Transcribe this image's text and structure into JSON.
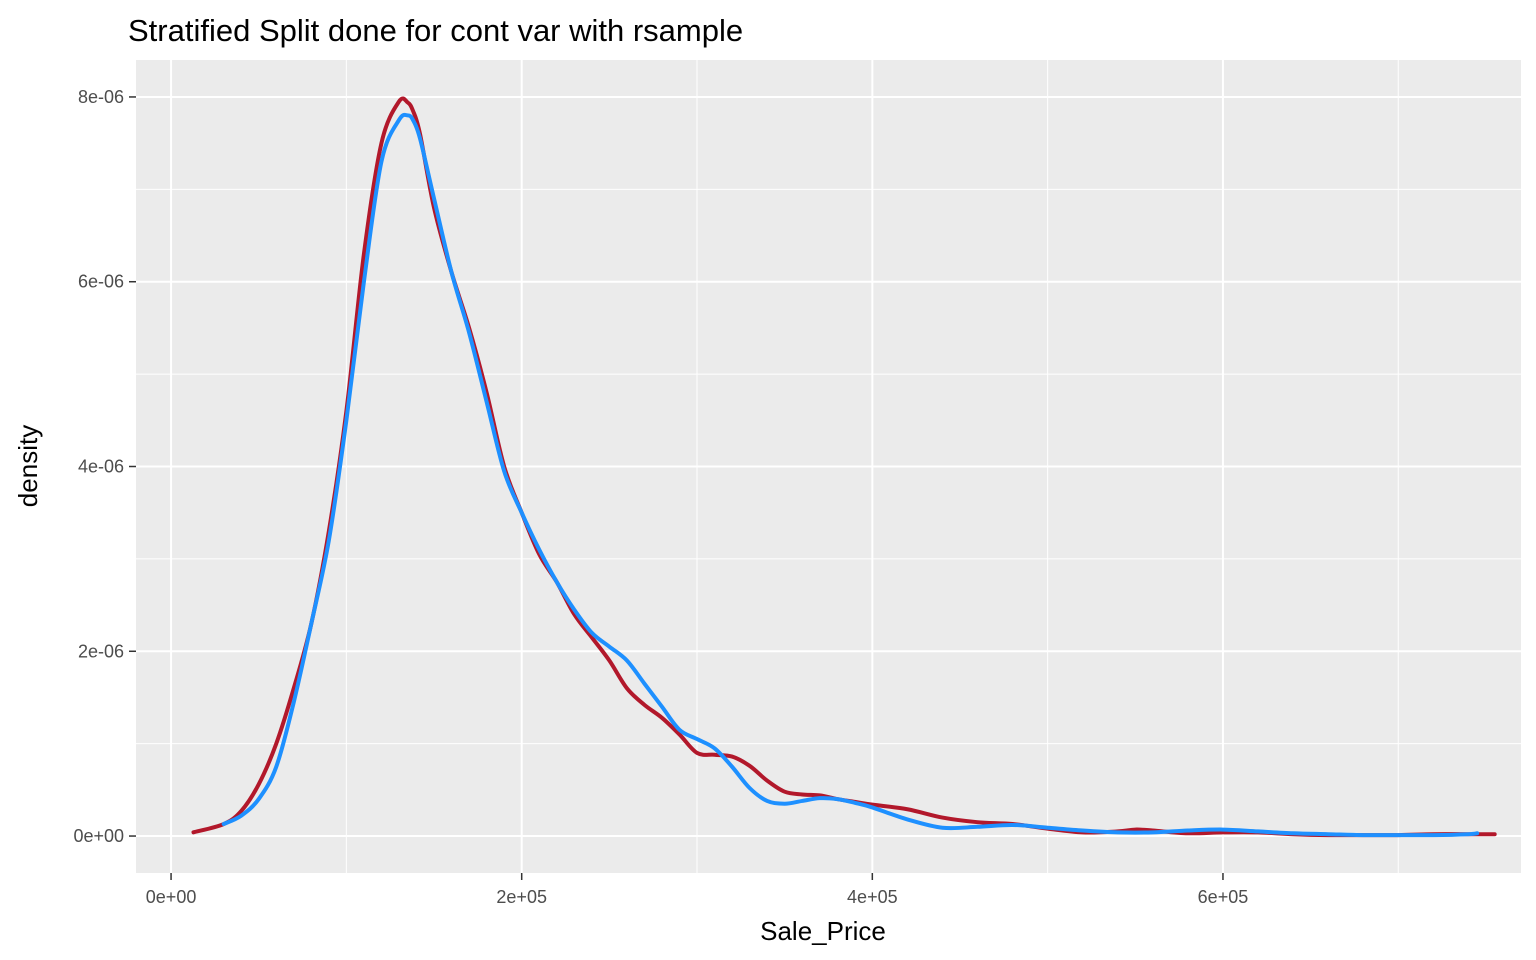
{
  "chart_data": {
    "type": "line",
    "chart_kind": "density",
    "title": "Stratified Split done for cont var with rsample",
    "xlabel": "Sale_Price",
    "ylabel": "density",
    "xlim": [
      -20000,
      770000
    ],
    "ylim": [
      -4e-07,
      8.4e-06
    ],
    "x_ticks": [
      {
        "value": 0,
        "label": "0e+00"
      },
      {
        "value": 200000,
        "label": "2e+05"
      },
      {
        "value": 400000,
        "label": "4e+05"
      },
      {
        "value": 600000,
        "label": "6e+05"
      }
    ],
    "y_ticks": [
      {
        "value": 0,
        "label": "0e+00"
      },
      {
        "value": 2e-06,
        "label": "2e-06"
      },
      {
        "value": 4e-06,
        "label": "4e-06"
      },
      {
        "value": 6e-06,
        "label": "6e-06"
      },
      {
        "value": 8e-06,
        "label": "8e-06"
      }
    ],
    "grid": true,
    "panel_background": "#EBEBEB",
    "gridline_color": "#FFFFFF",
    "legend": "none",
    "series": [
      {
        "color": "#B2182B",
        "x": [
          12800,
          30000,
          40000,
          50000,
          60000,
          70000,
          80000,
          90000,
          100000,
          110000,
          120000,
          130000,
          135000,
          138000,
          142000,
          150000,
          160000,
          170000,
          180000,
          190000,
          200000,
          210000,
          220000,
          230000,
          240000,
          250000,
          260000,
          270000,
          280000,
          290000,
          300000,
          310000,
          320000,
          330000,
          340000,
          350000,
          360000,
          370000,
          380000,
          390000,
          400000,
          420000,
          440000,
          460000,
          480000,
          500000,
          520000,
          540000,
          550000,
          560000,
          580000,
          600000,
          620000,
          640000,
          660000,
          680000,
          700000,
          720000,
          740000,
          755000
        ],
        "y": [
          4e-08,
          1.3e-07,
          2.7e-07,
          5.6e-07,
          1e-06,
          1.6e-06,
          2.3e-06,
          3.3e-06,
          4.6e-06,
          6.3e-06,
          7.5e-06,
          7.95e-06,
          7.94e-06,
          7.85e-06,
          7.6e-06,
          6.8e-06,
          6.1e-06,
          5.5e-06,
          4.8e-06,
          4e-06,
          3.5e-06,
          3.05e-06,
          2.75e-06,
          2.4e-06,
          2.15e-06,
          1.9e-06,
          1.6e-06,
          1.42e-06,
          1.28e-06,
          1.1e-06,
          9e-07,
          8.8e-07,
          8.6e-07,
          7.6e-07,
          6e-07,
          4.8e-07,
          4.5e-07,
          4.4e-07,
          4e-07,
          3.7e-07,
          3.4e-07,
          2.9e-07,
          2e-07,
          1.5e-07,
          1.3e-07,
          8e-08,
          4e-08,
          5e-08,
          7e-08,
          6e-08,
          3e-08,
          4e-08,
          4e-08,
          2e-08,
          1e-08,
          1e-08,
          1e-08,
          2e-08,
          2e-08,
          2e-08
        ]
      },
      {
        "color": "#1E90FF",
        "x": [
          30000,
          40000,
          50000,
          60000,
          70000,
          80000,
          90000,
          100000,
          110000,
          120000,
          130000,
          135000,
          138000,
          142000,
          150000,
          160000,
          170000,
          180000,
          190000,
          200000,
          210000,
          220000,
          230000,
          240000,
          250000,
          260000,
          270000,
          280000,
          290000,
          300000,
          310000,
          320000,
          330000,
          340000,
          350000,
          360000,
          370000,
          380000,
          390000,
          400000,
          420000,
          440000,
          460000,
          480000,
          500000,
          520000,
          540000,
          560000,
          580000,
          600000,
          620000,
          640000,
          660000,
          680000,
          700000,
          720000,
          740000,
          745000
        ],
        "y": [
          1.3e-07,
          2.2e-07,
          4e-07,
          7.5e-07,
          1.45e-06,
          2.3e-06,
          3.2e-06,
          4.5e-06,
          6e-06,
          7.3e-06,
          7.75e-06,
          7.8e-06,
          7.75e-06,
          7.55e-06,
          6.9e-06,
          6.1e-06,
          5.45e-06,
          4.7e-06,
          3.95e-06,
          3.5e-06,
          3.1e-06,
          2.75e-06,
          2.45e-06,
          2.2e-06,
          2.05e-06,
          1.9e-06,
          1.65e-06,
          1.4e-06,
          1.15e-06,
          1.05e-06,
          9.5e-07,
          7.5e-07,
          5.2e-07,
          3.8e-07,
          3.5e-07,
          3.8e-07,
          4.1e-07,
          4e-07,
          3.6e-07,
          3.1e-07,
          1.8e-07,
          9e-08,
          1e-07,
          1.2e-07,
          9e-08,
          6e-08,
          4e-08,
          4e-08,
          6e-08,
          7e-08,
          5e-08,
          3e-08,
          2e-08,
          1e-08,
          1e-08,
          1e-08,
          2e-08,
          3e-08
        ]
      }
    ]
  }
}
